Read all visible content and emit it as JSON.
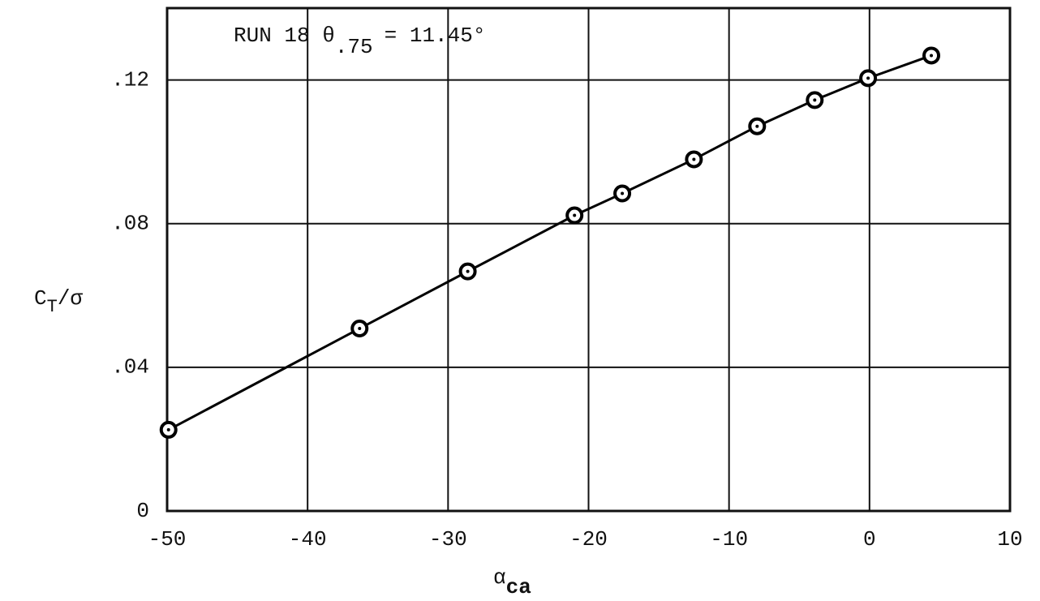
{
  "chart_data": {
    "type": "line",
    "annotation": {
      "prefix": "RUN 18 θ",
      "subscript": ".75",
      "suffix": "= 11.45°"
    },
    "ylabel": {
      "symbol": "C",
      "subscript": "T",
      "suffix": "/σ"
    },
    "xlabel": {
      "symbol": "α",
      "subscript": "ca"
    },
    "x": [
      -49.9,
      -36.3,
      -28.6,
      -21.0,
      -17.6,
      -12.5,
      -8.0,
      -3.9,
      -0.1,
      4.4
    ],
    "series": [
      {
        "name": "CT/σ",
        "color": "#000000",
        "values": [
          0.0226,
          0.0508,
          0.0667,
          0.0823,
          0.0884,
          0.0979,
          0.1071,
          0.1144,
          0.1205,
          0.1268
        ]
      }
    ],
    "xlim": [
      -50,
      10
    ],
    "xticks": [
      -50,
      -40,
      -30,
      -20,
      -10,
      0,
      10
    ],
    "ylim": [
      0,
      0.14
    ],
    "yticks": [
      0,
      {
        "value": 0.04,
        "label": ".04"
      },
      {
        "value": 0.08,
        "label": ".08"
      },
      {
        "value": 0.12,
        "label": ".12"
      }
    ],
    "grid": true
  }
}
